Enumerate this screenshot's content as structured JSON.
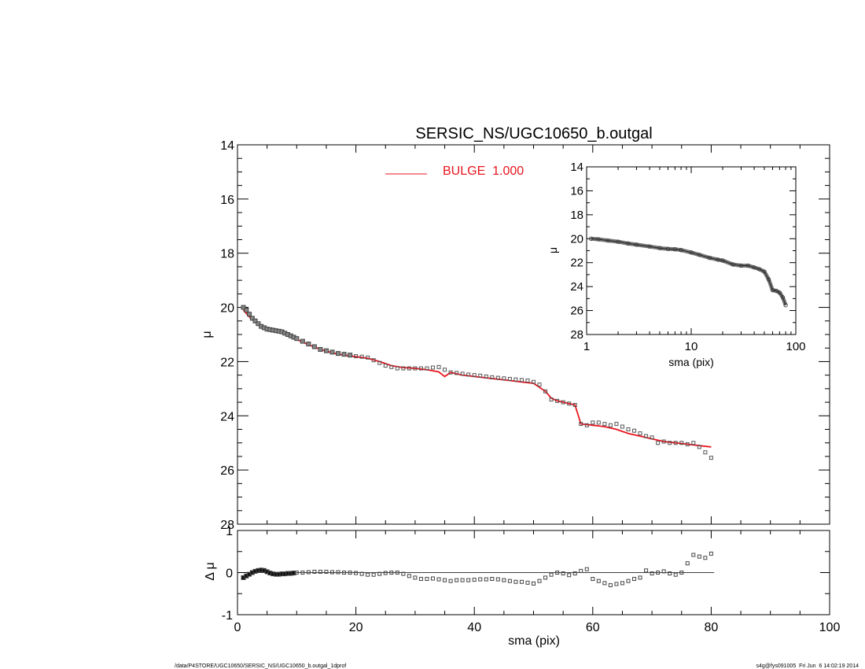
{
  "chart_data": [
    {
      "type": "scatter",
      "title": "SERSIC_NS/UGC10650_b.outgal",
      "xlabel": "",
      "ylabel": "μ",
      "xlim": [
        0,
        100
      ],
      "ylim": [
        28,
        14
      ],
      "y_inverted": true,
      "xticks": [
        0,
        20,
        40,
        60,
        80,
        100
      ],
      "yticks": [
        14,
        16,
        18,
        20,
        22,
        24,
        26,
        28
      ],
      "x_tick_labels_shown": false,
      "legend": {
        "placement": "top-center",
        "entries": [
          {
            "label": "BULGE  1.000",
            "color": "#e8141e"
          }
        ]
      },
      "series": [
        {
          "name": "data",
          "marker": "open-square",
          "x": [
            1,
            1.5,
            2,
            2.5,
            3,
            3.5,
            4,
            4.5,
            5,
            5.5,
            6,
            6.5,
            7,
            7.5,
            8,
            8.5,
            9,
            9.5,
            10,
            11,
            12,
            13,
            14,
            15,
            16,
            17,
            18,
            19,
            20,
            21,
            22,
            23,
            24,
            25,
            26,
            27,
            28,
            29,
            30,
            31,
            32,
            33,
            34,
            35,
            36,
            37,
            38,
            39,
            40,
            41,
            42,
            43,
            44,
            45,
            46,
            47,
            48,
            49,
            50,
            51,
            52,
            53,
            54,
            55,
            56,
            57,
            58,
            59,
            60,
            61,
            62,
            63,
            64,
            65,
            66,
            67,
            68,
            69,
            70,
            71,
            72,
            73,
            74,
            75,
            76,
            77,
            78,
            79,
            80
          ],
          "y": [
            20.0,
            20.1,
            20.25,
            20.4,
            20.5,
            20.6,
            20.7,
            20.75,
            20.8,
            20.82,
            20.84,
            20.86,
            20.88,
            20.9,
            20.95,
            21.0,
            21.05,
            21.1,
            21.15,
            21.25,
            21.35,
            21.45,
            21.55,
            21.6,
            21.65,
            21.7,
            21.73,
            21.76,
            21.8,
            21.82,
            21.85,
            21.95,
            22.05,
            22.15,
            22.2,
            22.25,
            22.25,
            22.25,
            22.25,
            22.25,
            22.25,
            22.22,
            22.2,
            22.3,
            22.4,
            22.42,
            22.45,
            22.48,
            22.5,
            22.52,
            22.55,
            22.58,
            22.6,
            22.62,
            22.64,
            22.66,
            22.68,
            22.7,
            22.75,
            22.85,
            23.1,
            23.4,
            23.45,
            23.5,
            23.55,
            23.6,
            24.3,
            24.35,
            24.25,
            24.25,
            24.3,
            24.35,
            24.3,
            24.4,
            24.5,
            24.55,
            24.65,
            24.75,
            24.8,
            25.0,
            24.95,
            25.0,
            25.0,
            25.0,
            25.05,
            25.0,
            25.15,
            25.35,
            25.55
          ]
        },
        {
          "name": "BULGE  1.000",
          "marker": "line",
          "color": "#e8141e",
          "x": [
            1,
            2,
            3,
            4,
            5,
            6,
            7,
            8,
            9,
            10,
            12,
            14,
            16,
            18,
            20,
            22,
            24,
            26,
            28,
            30,
            32,
            34,
            35,
            36,
            38,
            40,
            42,
            44,
            46,
            48,
            50,
            52,
            53,
            54,
            56,
            57,
            58,
            60,
            62,
            64,
            66,
            68,
            70,
            72,
            74,
            76,
            78,
            80
          ],
          "y": [
            20.1,
            20.35,
            20.55,
            20.7,
            20.8,
            20.85,
            20.9,
            20.98,
            21.08,
            21.18,
            21.38,
            21.55,
            21.68,
            21.76,
            21.82,
            21.88,
            22.0,
            22.15,
            22.22,
            22.25,
            22.3,
            22.38,
            22.55,
            22.4,
            22.5,
            22.55,
            22.6,
            22.65,
            22.7,
            22.75,
            22.8,
            23.1,
            23.35,
            23.45,
            23.55,
            23.6,
            24.3,
            24.35,
            24.4,
            24.5,
            24.65,
            24.75,
            24.85,
            24.95,
            25.0,
            25.05,
            25.1,
            25.15
          ]
        }
      ]
    },
    {
      "type": "scatter",
      "title": "",
      "xlabel": "sma (pix)",
      "ylabel": "Δ μ",
      "xlim": [
        0,
        100
      ],
      "ylim": [
        -1,
        1
      ],
      "xticks": [
        0,
        20,
        40,
        60,
        80,
        100
      ],
      "yticks": [
        -1,
        0,
        1
      ],
      "reference_line_y": 0,
      "series": [
        {
          "name": "residual",
          "marker": "open-square",
          "x": [
            1,
            1.5,
            2,
            2.5,
            3,
            3.5,
            4,
            4.5,
            5,
            5.5,
            6,
            6.5,
            7,
            7.5,
            8,
            8.5,
            9,
            9.5,
            10,
            11,
            12,
            13,
            14,
            15,
            16,
            17,
            18,
            19,
            20,
            21,
            22,
            23,
            24,
            25,
            26,
            27,
            28,
            29,
            30,
            31,
            32,
            33,
            34,
            35,
            36,
            37,
            38,
            39,
            40,
            41,
            42,
            43,
            44,
            45,
            46,
            47,
            48,
            49,
            50,
            51,
            52,
            53,
            54,
            55,
            56,
            57,
            58,
            59,
            60,
            61,
            62,
            63,
            64,
            65,
            66,
            67,
            68,
            69,
            70,
            71,
            72,
            73,
            74,
            75,
            76,
            77,
            78,
            79,
            80
          ],
          "y": [
            -0.12,
            -0.08,
            -0.04,
            0.0,
            0.03,
            0.05,
            0.06,
            0.05,
            0.02,
            -0.01,
            -0.03,
            -0.04,
            -0.04,
            -0.03,
            -0.03,
            -0.02,
            -0.02,
            -0.01,
            0.0,
            0.0,
            0.01,
            0.02,
            0.02,
            0.02,
            0.01,
            0.01,
            0.0,
            0.0,
            -0.01,
            -0.03,
            -0.05,
            -0.05,
            -0.03,
            -0.01,
            0.0,
            0.0,
            -0.03,
            -0.08,
            -0.12,
            -0.15,
            -0.15,
            -0.14,
            -0.16,
            -0.18,
            -0.2,
            -0.18,
            -0.18,
            -0.18,
            -0.17,
            -0.16,
            -0.16,
            -0.15,
            -0.16,
            -0.18,
            -0.2,
            -0.22,
            -0.22,
            -0.24,
            -0.26,
            -0.2,
            -0.12,
            -0.05,
            0.0,
            -0.02,
            -0.06,
            -0.02,
            0.04,
            0.08,
            -0.15,
            -0.2,
            -0.25,
            -0.3,
            -0.27,
            -0.25,
            -0.2,
            -0.15,
            -0.12,
            0.05,
            -0.02,
            0.0,
            0.03,
            -0.02,
            -0.05,
            0.0,
            0.22,
            0.42,
            0.38,
            0.35,
            0.45
          ]
        }
      ]
    },
    {
      "type": "scatter",
      "title": "",
      "xlabel": "sma (pix)",
      "ylabel": "μ",
      "x_scale": "log",
      "xlim": [
        1,
        100
      ],
      "ylim": [
        28,
        14
      ],
      "y_inverted": true,
      "xticks": [
        1,
        10,
        100
      ],
      "yticks": [
        14,
        16,
        18,
        20,
        22,
        24,
        26,
        28
      ],
      "series": [
        {
          "name": "data",
          "marker": "open-circle",
          "x": [
            1.1,
            1.3,
            1.6,
            2,
            2.5,
            3,
            4,
            5,
            6,
            7,
            8,
            10,
            12,
            15,
            18,
            20,
            25,
            30,
            35,
            40,
            45,
            50,
            55,
            60,
            65,
            70,
            75,
            80
          ],
          "y": [
            20.0,
            20.05,
            20.15,
            20.25,
            20.4,
            20.5,
            20.65,
            20.78,
            20.85,
            20.88,
            20.95,
            21.15,
            21.35,
            21.6,
            21.75,
            21.82,
            22.15,
            22.25,
            22.25,
            22.4,
            22.55,
            22.75,
            23.4,
            24.3,
            24.35,
            24.5,
            24.9,
            25.55
          ]
        }
      ]
    }
  ],
  "footer": {
    "left": "/data/P4STORE/UGC10650/SERSIC_NS/UGC10650_b.outgal_1dprof",
    "right": "s4g@fys091005  Fri Jun  6 14:02:19 2014"
  }
}
